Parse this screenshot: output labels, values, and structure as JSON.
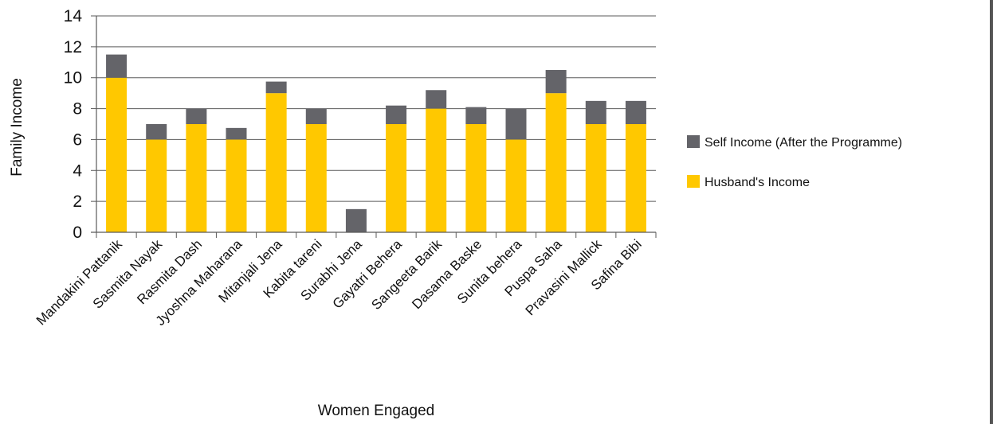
{
  "chart_data": {
    "type": "bar",
    "stacked": true,
    "title": "",
    "xlabel": "Women Engaged",
    "ylabel": "Family Income",
    "ylim": [
      0,
      14
    ],
    "yticks": [
      0,
      2,
      4,
      6,
      8,
      10,
      12,
      14
    ],
    "grid": true,
    "legend_position": "right",
    "categories": [
      "Mandakini Pattanik",
      "Sasmita Nayak",
      "Rasmita Dash",
      "Jyoshna Maharana",
      "Mitanjali Jena",
      "Kabita tareni",
      "Surabhi Jena",
      "Gayatri Behera",
      "Sangeeta Barik",
      "Dasama Baske",
      "Sunita behera",
      "Puspa Saha",
      "Pravasini Mallick",
      "Safina Bibi"
    ],
    "series": [
      {
        "name": "Husband's Income",
        "color": "#FFC800",
        "values": [
          10,
          6,
          7,
          6,
          9,
          7,
          0,
          7,
          8,
          7,
          6,
          9,
          7,
          7
        ]
      },
      {
        "name": "Self Income (After the Programme)",
        "color": "#646469",
        "values": [
          1.5,
          1,
          1,
          0.75,
          0.75,
          1,
          1.5,
          1.2,
          1.2,
          1.1,
          2,
          1.5,
          1.5,
          1.5
        ]
      }
    ],
    "legend_order": [
      "Self Income (After the Programme)",
      "Husband's Income"
    ]
  }
}
